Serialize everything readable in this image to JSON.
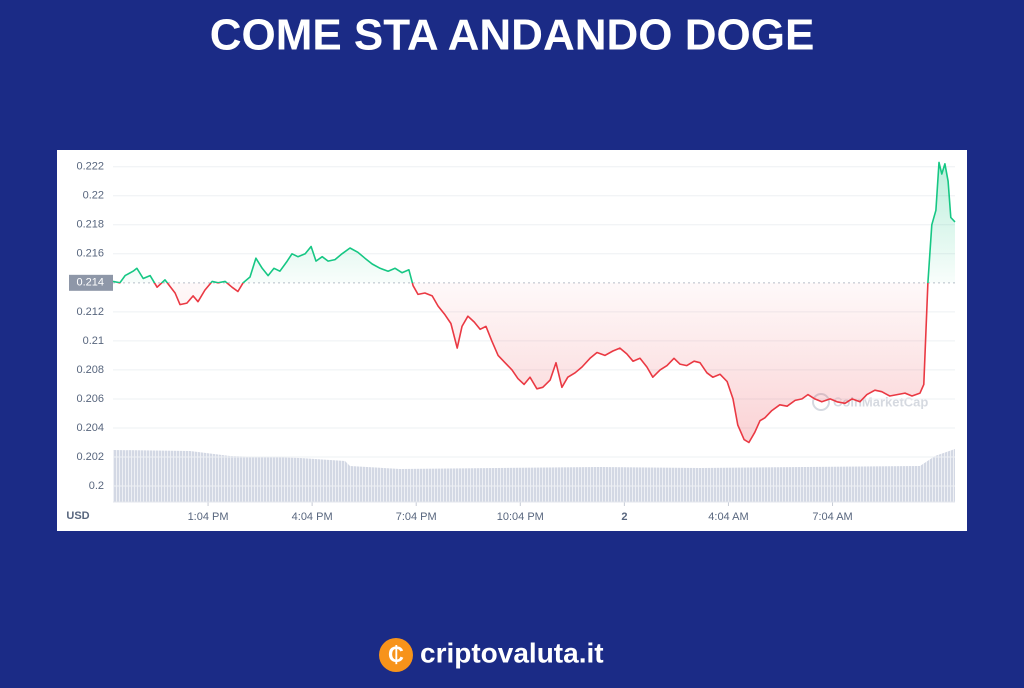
{
  "chart_data": {
    "type": "line",
    "title": "COME STA ANDANDO DOGE",
    "currency_label": "USD",
    "watermark": "CoinMarketCap",
    "brand": "criptovaluta.it",
    "baseline": 0.214,
    "colors": {
      "above": "#16c784",
      "below": "#ea3943"
    },
    "grid": true,
    "xlim": [
      -2.74,
      21.53
    ],
    "ylim": [
      0.1989,
      0.2226
    ],
    "yticks": [
      0.2,
      0.202,
      0.204,
      0.206,
      0.208,
      0.21,
      0.212,
      0.216,
      0.218,
      0.22,
      0.222
    ],
    "xticks": [
      {
        "value": 0,
        "label": "1:04 PM"
      },
      {
        "value": 3,
        "label": "4:04 PM"
      },
      {
        "value": 6,
        "label": "7:04 PM"
      },
      {
        "value": 9,
        "label": "10:04 PM"
      },
      {
        "value": 12,
        "label": "2"
      },
      {
        "value": 15,
        "label": "4:04 AM"
      },
      {
        "value": 18,
        "label": "7:04 AM"
      }
    ],
    "x": [
      -2.74,
      -2.54,
      -2.39,
      -2.16,
      -2.05,
      -1.87,
      -1.67,
      -1.47,
      -1.24,
      -0.95,
      -0.81,
      -0.61,
      -0.43,
      -0.29,
      -0.09,
      0.12,
      0.29,
      0.49,
      0.69,
      0.86,
      1.01,
      1.21,
      1.38,
      1.56,
      1.73,
      1.9,
      2.07,
      2.28,
      2.42,
      2.59,
      2.8,
      2.97,
      3.11,
      3.29,
      3.46,
      3.66,
      3.86,
      4.09,
      4.32,
      4.52,
      4.73,
      4.96,
      5.19,
      5.39,
      5.59,
      5.79,
      5.91,
      6.05,
      6.25,
      6.46,
      6.63,
      6.83,
      7.0,
      7.18,
      7.32,
      7.49,
      7.67,
      7.84,
      8.01,
      8.18,
      8.36,
      8.56,
      8.76,
      8.93,
      9.11,
      9.28,
      9.48,
      9.65,
      9.86,
      10.03,
      10.2,
      10.37,
      10.58,
      10.78,
      11.01,
      11.21,
      11.44,
      11.67,
      11.87,
      12.07,
      12.25,
      12.45,
      12.65,
      12.82,
      13.03,
      13.23,
      13.43,
      13.6,
      13.8,
      14.01,
      14.18,
      14.38,
      14.55,
      14.76,
      14.96,
      15.13,
      15.27,
      15.45,
      15.59,
      15.76,
      15.91,
      16.05,
      16.25,
      16.48,
      16.69,
      16.92,
      17.12,
      17.29,
      17.49,
      17.69,
      17.93,
      18.13,
      18.36,
      18.56,
      18.79,
      18.99,
      19.22,
      19.42,
      19.65,
      19.86,
      20.09,
      20.29,
      20.52,
      20.63,
      20.75,
      20.86,
      20.98,
      21.07,
      21.15,
      21.24,
      21.33,
      21.41,
      21.53
    ],
    "series": [
      {
        "name": "DOGE",
        "values": [
          0.2141,
          0.214,
          0.2145,
          0.2148,
          0.215,
          0.2143,
          0.2145,
          0.2137,
          0.2142,
          0.2133,
          0.2125,
          0.2126,
          0.2131,
          0.2127,
          0.2135,
          0.2141,
          0.214,
          0.2141,
          0.2137,
          0.2134,
          0.214,
          0.2144,
          0.2157,
          0.215,
          0.2145,
          0.215,
          0.2148,
          0.2155,
          0.216,
          0.2158,
          0.216,
          0.2165,
          0.2155,
          0.2158,
          0.2155,
          0.2156,
          0.216,
          0.2164,
          0.2161,
          0.2157,
          0.2153,
          0.215,
          0.2148,
          0.215,
          0.2147,
          0.2149,
          0.2138,
          0.2132,
          0.2133,
          0.2131,
          0.2124,
          0.2118,
          0.2112,
          0.2095,
          0.211,
          0.2117,
          0.2113,
          0.2108,
          0.211,
          0.21,
          0.209,
          0.2085,
          0.208,
          0.2074,
          0.207,
          0.2075,
          0.2067,
          0.2068,
          0.2073,
          0.2085,
          0.2068,
          0.2075,
          0.2078,
          0.2082,
          0.2088,
          0.2092,
          0.209,
          0.2093,
          0.2095,
          0.2091,
          0.2086,
          0.2088,
          0.2082,
          0.2075,
          0.208,
          0.2083,
          0.2088,
          0.2084,
          0.2083,
          0.2086,
          0.2085,
          0.2078,
          0.2075,
          0.2077,
          0.2072,
          0.206,
          0.2042,
          0.2032,
          0.203,
          0.2037,
          0.2045,
          0.2047,
          0.2052,
          0.2056,
          0.2055,
          0.2059,
          0.206,
          0.2063,
          0.206,
          0.2058,
          0.206,
          0.2058,
          0.2057,
          0.206,
          0.2058,
          0.2063,
          0.2066,
          0.2065,
          0.2062,
          0.2063,
          0.2064,
          0.2062,
          0.2064,
          0.207,
          0.214,
          0.218,
          0.219,
          0.2223,
          0.2215,
          0.2222,
          0.221,
          0.2185,
          0.2182
        ]
      }
    ]
  }
}
